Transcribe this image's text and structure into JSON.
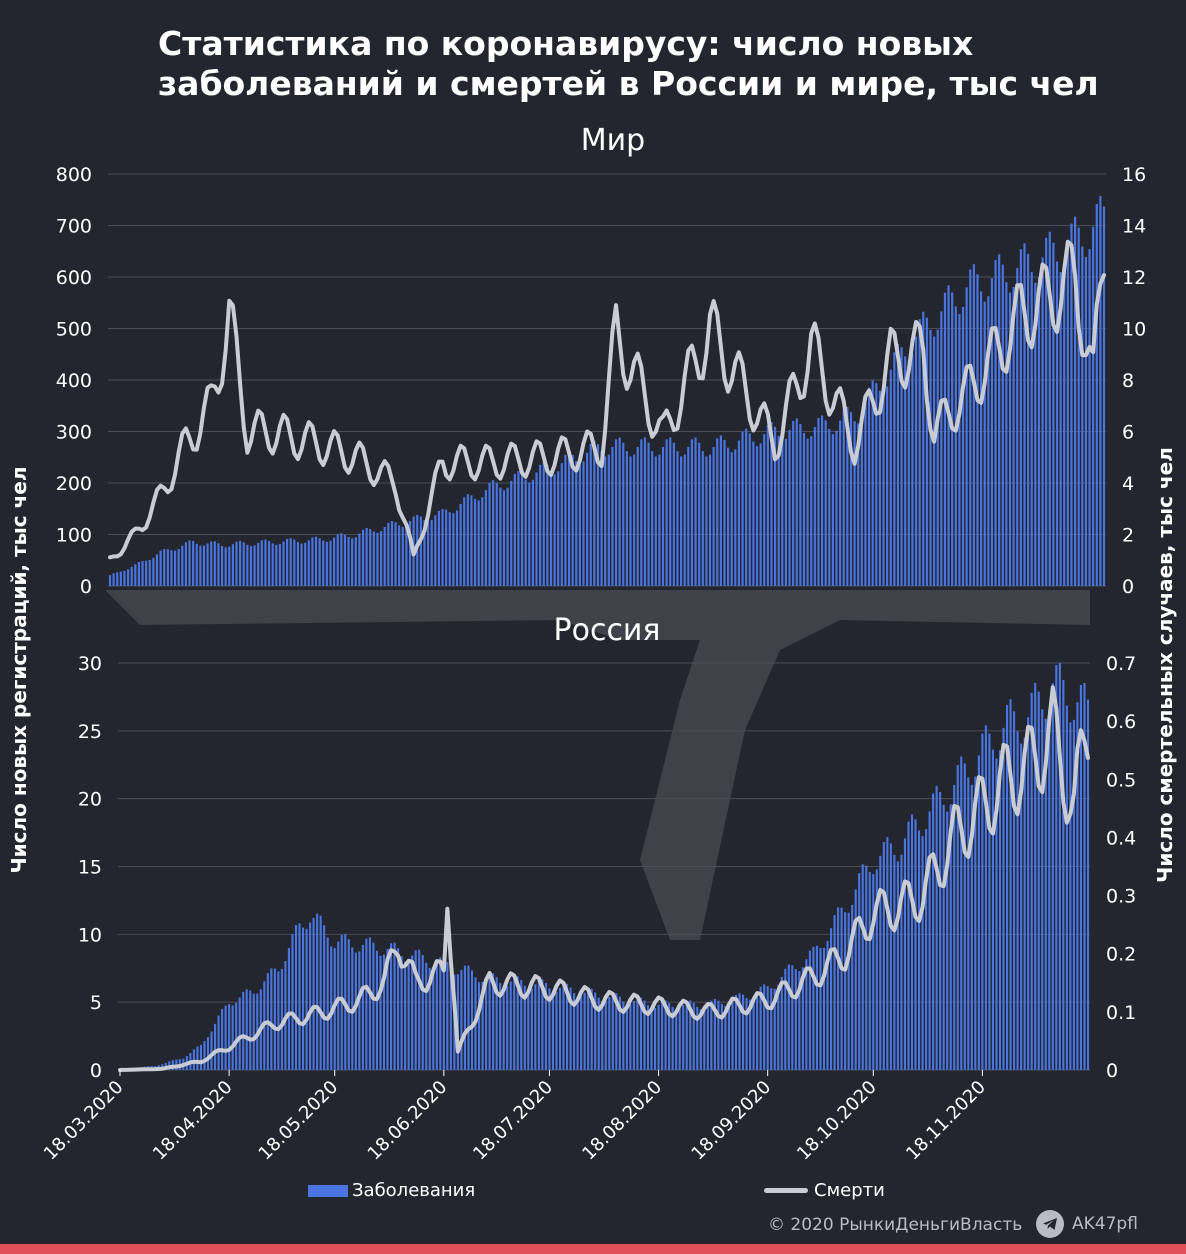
{
  "title_line1": "Статистика по коронавирусу: число новых",
  "title_line2": "заболеваний и смертей в России и мире, тыс чел",
  "colors": {
    "background": "#23262e",
    "bars": "#4a74e0",
    "line": "#c9ccd3",
    "grid": "#4a4e58",
    "accent_stripe": "#e0505a"
  },
  "legend": {
    "cases": "Заболевания",
    "deaths": "Смерти"
  },
  "y_left_label": "Число новых регистраций, тыс чел",
  "y_right_label": "Число смертельных случаев, тыс чел",
  "footer": {
    "copyright": "© 2020  РынкиДеньгиВласть",
    "channel": "AK47pfl"
  },
  "chart_data": [
    {
      "type": "bar+line",
      "title": "Мир",
      "x_start": "2020-03-18",
      "x_end": "2020-12-18",
      "bars_series": "Заболевания",
      "line_series": "Смерти",
      "ylim_left": [
        0,
        800
      ],
      "yticks_left": [
        "0",
        "100",
        "200",
        "300",
        "400",
        "500",
        "600",
        "700",
        "800"
      ],
      "ylim_right": [
        0,
        16
      ],
      "yticks_right": [
        "0",
        "2",
        "4",
        "6",
        "8",
        "10",
        "12",
        "14",
        "16"
      ],
      "cases_anchors": [
        [
          "2020-03-18",
          20
        ],
        [
          "2020-03-25",
          40
        ],
        [
          "2020-04-01",
          65
        ],
        [
          "2020-04-10",
          85
        ],
        [
          "2020-04-18",
          80
        ],
        [
          "2020-05-01",
          85
        ],
        [
          "2020-05-15",
          90
        ],
        [
          "2020-05-25",
          100
        ],
        [
          "2020-06-05",
          120
        ],
        [
          "2020-06-18",
          140
        ],
        [
          "2020-07-01",
          190
        ],
        [
          "2020-07-18",
          230
        ],
        [
          "2020-08-01",
          270
        ],
        [
          "2020-08-18",
          270
        ],
        [
          "2020-09-01",
          270
        ],
        [
          "2020-09-18",
          300
        ],
        [
          "2020-10-01",
          310
        ],
        [
          "2020-10-10",
          330
        ],
        [
          "2020-10-18",
          400
        ],
        [
          "2020-10-25",
          470
        ],
        [
          "2020-11-01",
          520
        ],
        [
          "2020-11-10",
          580
        ],
        [
          "2020-11-18",
          600
        ],
        [
          "2020-11-25",
          620
        ],
        [
          "2020-12-05",
          650
        ],
        [
          "2020-12-12",
          680
        ],
        [
          "2020-12-18",
          715
        ]
      ],
      "deaths_anchors": [
        [
          "2020-03-18",
          1.0
        ],
        [
          "2020-03-25",
          2.0
        ],
        [
          "2020-04-01",
          3.5
        ],
        [
          "2020-04-08",
          5.5
        ],
        [
          "2020-04-15",
          7.0
        ],
        [
          "2020-04-20",
          10.5
        ],
        [
          "2020-04-25",
          6.0
        ],
        [
          "2020-05-01",
          6.0
        ],
        [
          "2020-05-15",
          5.5
        ],
        [
          "2020-05-25",
          5.0
        ],
        [
          "2020-06-05",
          4.0
        ],
        [
          "2020-06-10",
          1.1
        ],
        [
          "2020-06-18",
          4.8
        ],
        [
          "2020-07-01",
          4.8
        ],
        [
          "2020-07-18",
          5.0
        ],
        [
          "2020-08-01",
          5.4
        ],
        [
          "2020-08-05",
          9.8
        ],
        [
          "2020-08-18",
          5.8
        ],
        [
          "2020-08-31",
          10.0
        ],
        [
          "2020-09-18",
          5.5
        ],
        [
          "2020-09-28",
          9.3
        ],
        [
          "2020-10-10",
          5.5
        ],
        [
          "2020-10-20",
          8.8
        ],
        [
          "2020-10-29",
          9.1
        ],
        [
          "2020-11-01",
          6.0
        ],
        [
          "2020-11-10",
          7.5
        ],
        [
          "2020-11-18",
          9.0
        ],
        [
          "2020-11-25",
          10.5
        ],
        [
          "2020-12-01",
          11.0
        ],
        [
          "2020-12-10",
          12.0
        ],
        [
          "2020-12-15",
          8.0
        ],
        [
          "2020-12-18",
          13.5
        ]
      ]
    },
    {
      "type": "bar+line",
      "title": "Россия",
      "x_start": "2020-03-18",
      "x_end": "2020-12-18",
      "bars_series": "Заболевания",
      "line_series": "Смерти",
      "ylim_left": [
        0,
        30
      ],
      "yticks_left": [
        "0",
        "5",
        "10",
        "15",
        "20",
        "25",
        "30"
      ],
      "ylim_right": [
        0,
        0.7
      ],
      "yticks_right": [
        "0",
        "0.1",
        "0.2",
        "0.3",
        "0.4",
        "0.5",
        "0.6",
        "0.7"
      ],
      "xticks": [
        "18.03.2020",
        "18.04.2020",
        "18.05.2020",
        "18.06.2020",
        "18.07.2020",
        "18.08.2020",
        "18.09.2020",
        "18.10.2020",
        "18.11.2020"
      ],
      "cases_anchors": [
        [
          "2020-03-18",
          0.1
        ],
        [
          "2020-03-28",
          0.3
        ],
        [
          "2020-04-05",
          0.9
        ],
        [
          "2020-04-10",
          1.8
        ],
        [
          "2020-04-18",
          5.0
        ],
        [
          "2020-04-25",
          5.8
        ],
        [
          "2020-05-02",
          7.5
        ],
        [
          "2020-05-08",
          10.5
        ],
        [
          "2020-05-11",
          11.5
        ],
        [
          "2020-05-18",
          9.5
        ],
        [
          "2020-06-01",
          9.0
        ],
        [
          "2020-06-18",
          7.8
        ],
        [
          "2020-07-01",
          6.7
        ],
        [
          "2020-07-18",
          6.2
        ],
        [
          "2020-08-01",
          5.5
        ],
        [
          "2020-08-18",
          4.8
        ],
        [
          "2020-09-01",
          4.8
        ],
        [
          "2020-09-10",
          5.3
        ],
        [
          "2020-09-18",
          6.0
        ],
        [
          "2020-09-25",
          7.5
        ],
        [
          "2020-10-01",
          8.5
        ],
        [
          "2020-10-10",
          12.0
        ],
        [
          "2020-10-18",
          15.5
        ],
        [
          "2020-10-25",
          16.5
        ],
        [
          "2020-11-01",
          18.5
        ],
        [
          "2020-11-10",
          21.0
        ],
        [
          "2020-11-18",
          23.5
        ],
        [
          "2020-11-25",
          25.5
        ],
        [
          "2020-12-01",
          26.0
        ],
        [
          "2020-12-08",
          28.5
        ],
        [
          "2020-12-18",
          26.5
        ]
      ],
      "deaths_anchors": [
        [
          "2020-03-18",
          0.0
        ],
        [
          "2020-03-30",
          0.002
        ],
        [
          "2020-04-10",
          0.015
        ],
        [
          "2020-04-18",
          0.04
        ],
        [
          "2020-05-01",
          0.08
        ],
        [
          "2020-05-15",
          0.1
        ],
        [
          "2020-05-25",
          0.12
        ],
        [
          "2020-06-01",
          0.15
        ],
        [
          "2020-06-05",
          0.22
        ],
        [
          "2020-06-10",
          0.15
        ],
        [
          "2020-06-18",
          0.17
        ],
        [
          "2020-06-19",
          0.31
        ],
        [
          "2020-06-22",
          0.03
        ],
        [
          "2020-07-01",
          0.15
        ],
        [
          "2020-07-18",
          0.14
        ],
        [
          "2020-08-01",
          0.12
        ],
        [
          "2020-08-18",
          0.11
        ],
        [
          "2020-09-01",
          0.1
        ],
        [
          "2020-09-18",
          0.12
        ],
        [
          "2020-10-01",
          0.16
        ],
        [
          "2020-10-10",
          0.2
        ],
        [
          "2020-10-18",
          0.27
        ],
        [
          "2020-10-25",
          0.28
        ],
        [
          "2020-11-01",
          0.3
        ],
        [
          "2020-11-10",
          0.4
        ],
        [
          "2020-11-18",
          0.45
        ],
        [
          "2020-11-25",
          0.5
        ],
        [
          "2020-12-01",
          0.52
        ],
        [
          "2020-12-08",
          0.58
        ],
        [
          "2020-12-14",
          0.45
        ],
        [
          "2020-12-18",
          0.6
        ]
      ]
    }
  ]
}
